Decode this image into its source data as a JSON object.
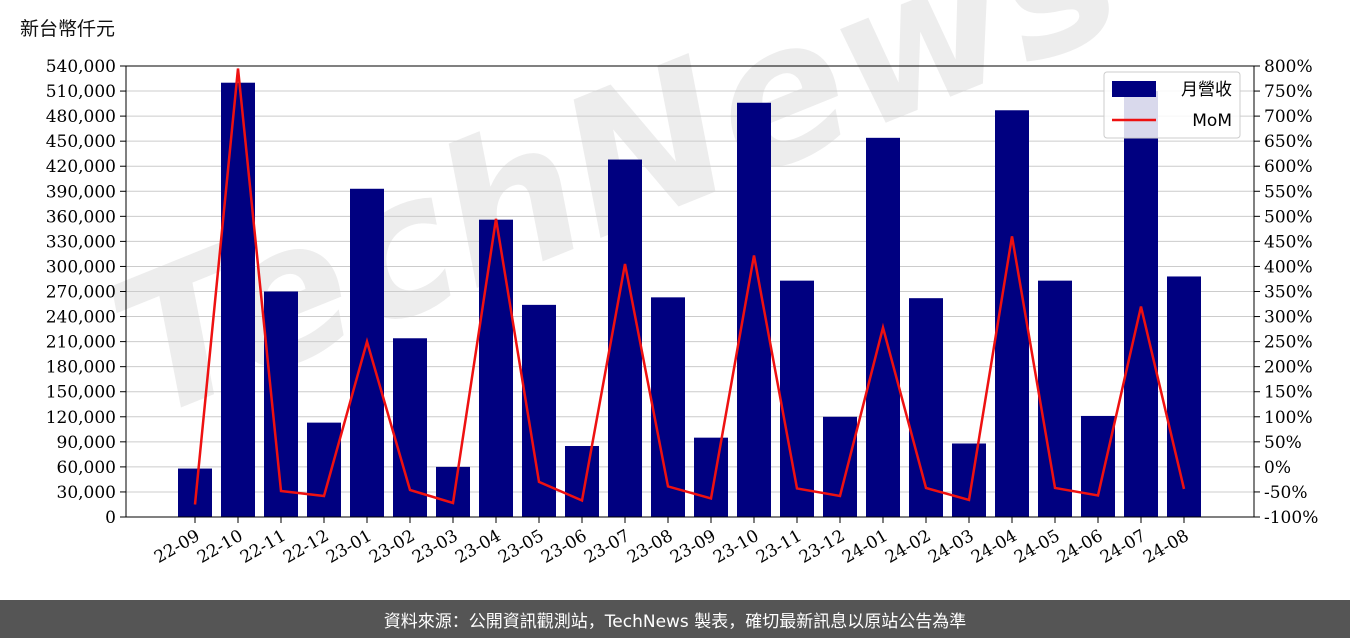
{
  "unit_label": "新台幣仟元",
  "footer_text": "資料來源：公開資訊觀測站，TechNews 製表，確切最新訊息以原站公告為準",
  "watermark_text": "TechNews",
  "colors": {
    "bar": "#000080",
    "line": "#ee1111",
    "grid": "#cccccc",
    "footer_bg": "#555555"
  },
  "chart_data": {
    "type": "bar",
    "categories": [
      "22-09",
      "22-10",
      "22-11",
      "22-12",
      "23-01",
      "23-02",
      "23-03",
      "23-04",
      "23-05",
      "23-06",
      "23-07",
      "23-08",
      "23-09",
      "23-10",
      "23-11",
      "23-12",
      "24-01",
      "24-02",
      "24-03",
      "24-04",
      "24-05",
      "24-06",
      "24-07",
      "24-08"
    ],
    "series": [
      {
        "name": "月營收",
        "axis": "left",
        "type": "bar",
        "values": [
          58000,
          520000,
          270000,
          113000,
          393000,
          214000,
          60000,
          356000,
          254000,
          85000,
          428000,
          263000,
          95000,
          496000,
          283000,
          120000,
          454000,
          262000,
          88000,
          487000,
          283000,
          121000,
          510000,
          288000
        ]
      },
      {
        "name": "MoM",
        "axis": "right",
        "type": "line",
        "unit": "%",
        "values": [
          -75,
          795,
          -48,
          -58,
          250,
          -46,
          -72,
          495,
          -30,
          -67,
          405,
          -39,
          -63,
          422,
          -43,
          -58,
          278,
          -42,
          -66,
          460,
          -42,
          -57,
          320,
          -44
        ]
      }
    ],
    "y_left": {
      "ylim": [
        0,
        540000
      ],
      "ticks": [
        "0",
        "30,000",
        "60,000",
        "90,000",
        "120,000",
        "150,000",
        "180,000",
        "210,000",
        "240,000",
        "270,000",
        "300,000",
        "330,000",
        "360,000",
        "390,000",
        "420,000",
        "450,000",
        "480,000",
        "510,000",
        "540,000"
      ]
    },
    "y_right": {
      "ylim": [
        -100,
        800
      ],
      "ticks": [
        "-100%",
        "-50%",
        "0%",
        "50%",
        "100%",
        "150%",
        "200%",
        "250%",
        "300%",
        "350%",
        "400%",
        "450%",
        "500%",
        "550%",
        "600%",
        "650%",
        "700%",
        "750%",
        "800%"
      ]
    },
    "grid": true,
    "legend_position": "top-right"
  }
}
